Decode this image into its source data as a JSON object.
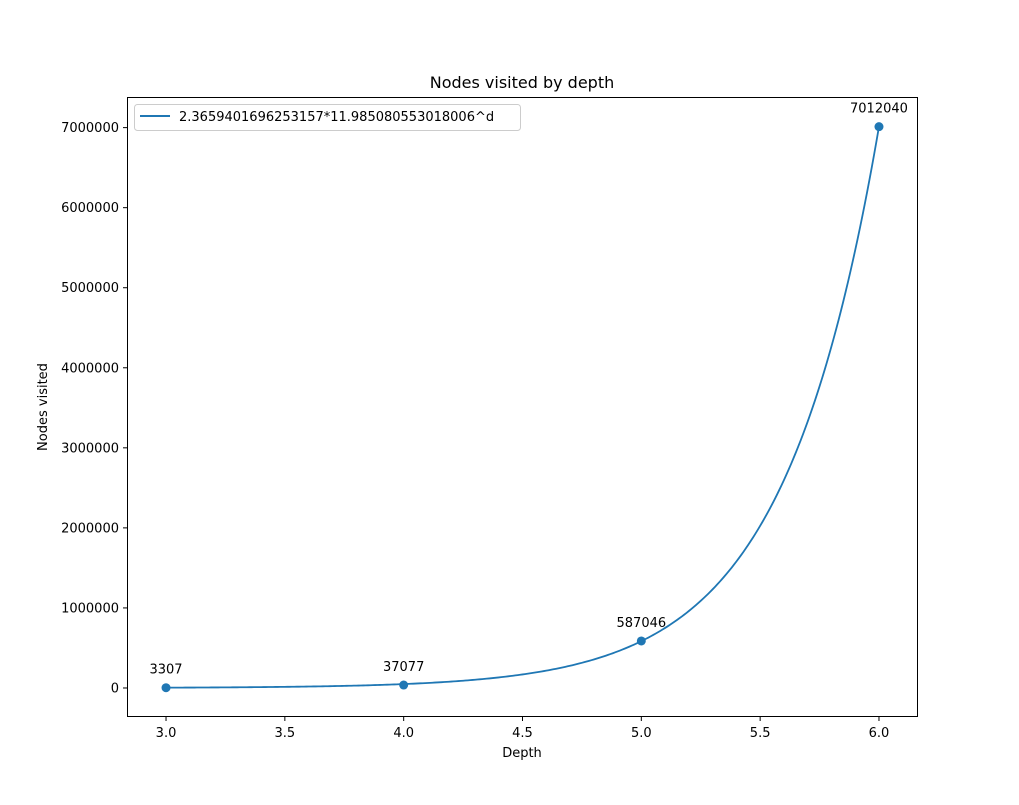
{
  "chart_data": {
    "type": "line",
    "title": "Nodes visited by depth",
    "xlabel": "Depth",
    "ylabel": "Nodes visited",
    "xlim": [
      2.84,
      6.16
    ],
    "ylim": [
      -350000,
      7370000
    ],
    "xticks": [
      3.0,
      3.5,
      4.0,
      4.5,
      5.0,
      5.5,
      6.0
    ],
    "xtick_labels": [
      "3.0",
      "3.5",
      "4.0",
      "4.5",
      "5.0",
      "5.5",
      "6.0"
    ],
    "yticks": [
      0,
      1000000,
      2000000,
      3000000,
      4000000,
      5000000,
      6000000,
      7000000
    ],
    "ytick_labels": [
      "0",
      "1000000",
      "2000000",
      "3000000",
      "4000000",
      "5000000",
      "6000000",
      "7000000"
    ],
    "points": {
      "x": [
        3,
        4,
        5,
        6
      ],
      "y": [
        3307,
        37077,
        587046,
        7012040
      ],
      "labels": [
        "3307",
        "37077",
        "587046",
        "7012040"
      ]
    },
    "fit": {
      "name": "2.3659401696253157*11.985080553018006^d",
      "coefficient": 2.3659401696253157,
      "base": 11.985080553018006,
      "x_range": [
        3,
        6
      ]
    },
    "series_color": "#1f77b4",
    "legend_position": "upper-left",
    "grid": false
  }
}
